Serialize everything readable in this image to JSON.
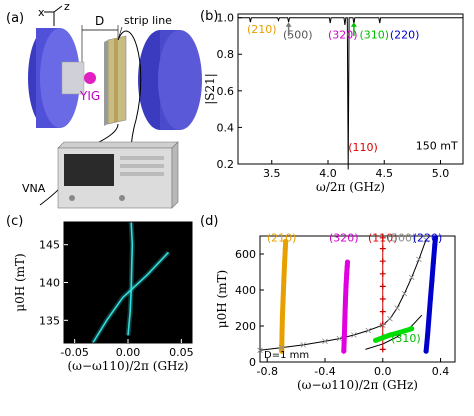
{
  "panels": {
    "a": {
      "label": "(a)",
      "axis_labels": {
        "x": "x",
        "y": "y",
        "z": "z"
      },
      "dim_label": "D",
      "strip_line_label": "strip line",
      "yig_label": "YIG",
      "vna_label": "VNA",
      "colors": {
        "magnet": "#4a4ad0",
        "yig": "#e020c0",
        "label": "#c000c0"
      }
    }
  },
  "chart_data": [
    {
      "panel": "(b)",
      "type": "line",
      "xlabel": "ω/2π (GHz)",
      "ylabel": "|S21|",
      "xlim": [
        3.2,
        5.2
      ],
      "ylim": [
        0.2,
        1.02
      ],
      "xticks": [
        "3.5",
        "4.0",
        "4.5",
        "5.0"
      ],
      "yticks": [
        "0.2",
        "0.4",
        "0.6",
        "0.8",
        "1.0"
      ],
      "annotation": "150 mT",
      "series": [
        {
          "color": "#000000",
          "baseline": 1.0,
          "dips": [
            {
              "x": 3.31,
              "y": 0.975
            },
            {
              "x": 3.56,
              "y": 0.985
            },
            {
              "x": 3.65,
              "y": 0.975
            },
            {
              "x": 4.02,
              "y": 0.97
            },
            {
              "x": 4.15,
              "y": 0.96
            },
            {
              "x": 4.18,
              "y": 0.17
            },
            {
              "x": 4.23,
              "y": 0.965
            },
            {
              "x": 4.46,
              "y": 0.97
            }
          ]
        }
      ],
      "mode_labels": [
        {
          "text": "(210)",
          "x": 3.28,
          "y": 0.915,
          "color": "#e8a000"
        },
        {
          "text": "(500)",
          "x": 3.6,
          "y": 0.885,
          "color": "#555555"
        },
        {
          "text": "(320)",
          "x": 4.0,
          "y": 0.885,
          "color": "#d000d0"
        },
        {
          "text": "(310)",
          "x": 4.28,
          "y": 0.885,
          "color": "#00bb00"
        },
        {
          "text": "(220)",
          "x": 4.55,
          "y": 0.885,
          "color": "#0000cc"
        },
        {
          "text": "(110)",
          "x": 4.18,
          "y": 0.27,
          "color": "#dd0000"
        }
      ],
      "arrows": [
        {
          "x": 3.65,
          "color": "#777777"
        },
        {
          "x": 4.23,
          "color": "#00bb00"
        }
      ]
    },
    {
      "panel": "(c)",
      "type": "heatmap",
      "xlabel": "(ω−ω110)/2π (GHz)",
      "ylabel": "μ0H (mT)",
      "xlim": [
        -0.06,
        0.06
      ],
      "ylim": [
        132,
        148
      ],
      "xticks": [
        "-0.05",
        "0.00",
        "0.05"
      ],
      "yticks": [
        "135",
        "140",
        "145"
      ],
      "colors": {
        "background": "#000000",
        "trace": "#30e0e0"
      },
      "series": [
        {
          "name": "",
          "x": [
            0.0,
            0.002,
            0.003,
            0.0035,
            0.004,
            0.003
          ],
          "y": [
            133,
            136,
            139,
            142,
            145,
            148
          ]
        },
        {
          "name": "",
          "x": [
            -0.033,
            -0.02,
            -0.005,
            0.018,
            0.038
          ],
          "y": [
            132,
            135,
            138,
            141,
            144
          ]
        }
      ]
    },
    {
      "panel": "(d)",
      "type": "scatter",
      "xlabel": "(ω−ω110)/2π (GHz)",
      "ylabel": "μ0H (mT)",
      "xlim": [
        -0.85,
        0.5
      ],
      "ylim": [
        0,
        700
      ],
      "xticks": [
        "-0.8",
        "-0.4",
        "0.0",
        "0.4"
      ],
      "yticks": [
        "0",
        "200",
        "400",
        "600"
      ],
      "annotation": "D=1 mm",
      "mode_labels": [
        {
          "text": "(210)",
          "x": -0.7,
          "y": 670,
          "color": "#e8a000"
        },
        {
          "text": "(320)",
          "x": -0.27,
          "y": 670,
          "color": "#d000d0"
        },
        {
          "text": "(110)",
          "x": 0.0,
          "y": 670,
          "color": "#dd0000"
        },
        {
          "text": "(500)",
          "x": 0.13,
          "y": 670,
          "color": "#888888"
        },
        {
          "text": "(220)",
          "x": 0.31,
          "y": 670,
          "color": "#0000cc"
        },
        {
          "text": "(310)",
          "x": 0.16,
          "y": 110,
          "color": "#00bb00"
        }
      ],
      "series": [
        {
          "name": "(210)",
          "color": "#e8a000",
          "marker": "dot",
          "x": [
            -0.7,
            -0.698,
            -0.695,
            -0.69,
            -0.685,
            -0.68,
            -0.675,
            -0.672
          ],
          "y": [
            60,
            150,
            250,
            350,
            450,
            550,
            630,
            670
          ]
        },
        {
          "name": "(320)",
          "color": "#e000e0",
          "marker": "dot",
          "x": [
            -0.27,
            -0.266,
            -0.262,
            -0.258,
            -0.254,
            -0.25,
            -0.246,
            -0.244
          ],
          "y": [
            60,
            150,
            250,
            350,
            430,
            490,
            530,
            555
          ]
        },
        {
          "name": "(110)",
          "color": "#cc0000",
          "marker": "plus",
          "x": [
            0.0,
            0.0,
            0.0,
            0.0,
            0.0,
            0.0,
            0.0,
            0.0,
            0.0,
            0.0
          ],
          "y": [
            70,
            140,
            210,
            280,
            350,
            420,
            490,
            560,
            630,
            690
          ]
        },
        {
          "name": "(220)",
          "color": "#0000cc",
          "marker": "dot",
          "x": [
            0.3,
            0.31,
            0.32,
            0.33,
            0.34,
            0.35,
            0.36,
            0.365
          ],
          "y": [
            60,
            150,
            250,
            350,
            450,
            550,
            650,
            690
          ]
        },
        {
          "name": "(310)",
          "color": "#00dd00",
          "marker": "dot",
          "x": [
            -0.05,
            0.0,
            0.05,
            0.1,
            0.15,
            0.2
          ],
          "y": [
            120,
            135,
            150,
            160,
            172,
            185
          ]
        },
        {
          "name": "(500)",
          "color": "#888888",
          "marker": "cross",
          "x": [
            -0.85,
            -0.7,
            -0.55,
            -0.4,
            -0.3,
            -0.2,
            -0.1,
            0.0,
            0.05,
            0.1,
            0.15,
            0.2,
            0.25,
            0.3
          ],
          "y": [
            65,
            80,
            95,
            115,
            130,
            150,
            175,
            205,
            240,
            300,
            380,
            470,
            570,
            680
          ]
        }
      ],
      "fit_lines": [
        {
          "color": "#000000",
          "x": [
            -0.85,
            -0.7,
            -0.55,
            -0.4,
            -0.3,
            -0.2,
            -0.1,
            0.0,
            0.05,
            0.1,
            0.15,
            0.2,
            0.25,
            0.3
          ],
          "y": [
            65,
            80,
            95,
            115,
            130,
            150,
            175,
            205,
            240,
            300,
            380,
            470,
            570,
            680
          ]
        },
        {
          "color": "#000000",
          "x": [
            -0.12,
            0.0,
            0.1,
            0.2,
            0.27
          ],
          "y": [
            70,
            100,
            140,
            200,
            260
          ]
        }
      ]
    }
  ]
}
